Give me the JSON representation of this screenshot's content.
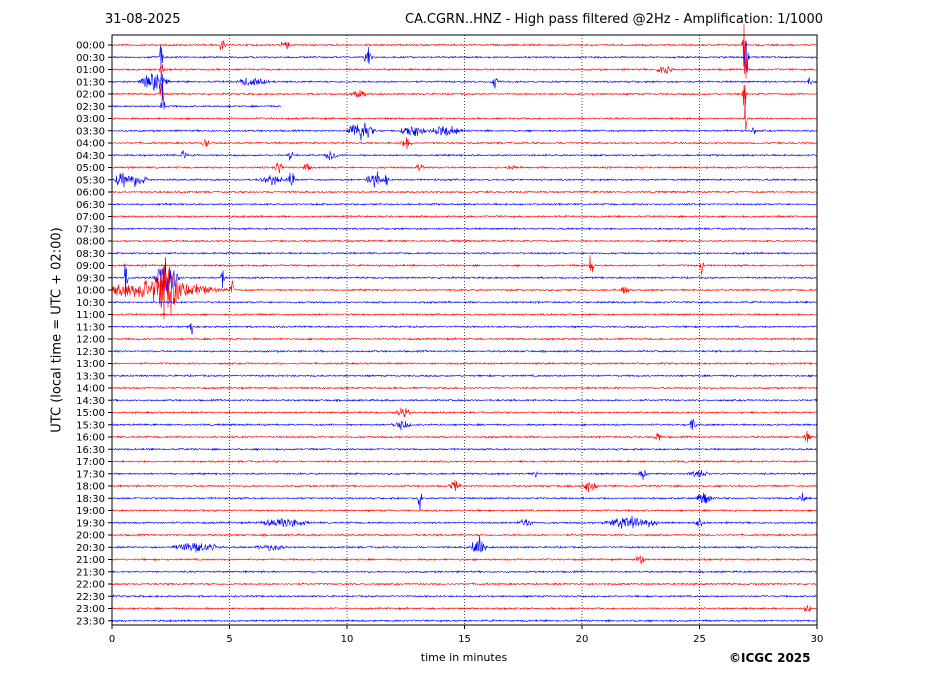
{
  "header": {
    "date": "31-08-2025",
    "title": "CA.CGRN..HNZ - High pass filtered @2Hz - Amplification: 1/1000"
  },
  "footer": {
    "credit": "©ICGC 2025"
  },
  "chart_data": {
    "type": "line",
    "xlabel": "time in minutes",
    "ylabel": "UTC (local time = UTC + 02:00)",
    "xlim": [
      0,
      30
    ],
    "x_ticks": [
      0,
      5,
      10,
      15,
      20,
      25,
      30
    ],
    "grid": "vertical dotted at x ticks",
    "row_labels": [
      "00:00",
      "00:30",
      "01:00",
      "01:30",
      "02:00",
      "02:30",
      "03:00",
      "03:30",
      "04:00",
      "04:30",
      "05:00",
      "05:30",
      "06:00",
      "06:30",
      "07:00",
      "07:30",
      "08:00",
      "08:30",
      "09:00",
      "09:30",
      "10:00",
      "10:30",
      "11:00",
      "11:30",
      "12:00",
      "12:30",
      "13:00",
      "13:30",
      "14:00",
      "14:30",
      "15:00",
      "15:30",
      "16:00",
      "16:30",
      "17:00",
      "17:30",
      "18:00",
      "18:30",
      "19:00",
      "19:30",
      "20:00",
      "20:30",
      "21:00",
      "21:30",
      "22:00",
      "22:30",
      "23:00",
      "23:30"
    ],
    "trace_colors": [
      "#ff0000",
      "#0000ff"
    ],
    "row_partial_end_minutes": {
      "02:30": 7.2
    },
    "events": [
      {
        "row": "00:00",
        "at": 4.7,
        "dur": 0.15,
        "amp": 0.9
      },
      {
        "row": "00:00",
        "at": 7.4,
        "dur": 0.3,
        "amp": 0.5
      },
      {
        "row": "00:00",
        "at": 26.9,
        "dur": 0.1,
        "amp": 3.0
      },
      {
        "row": "00:30",
        "at": 2.1,
        "dur": 0.08,
        "amp": 3.0
      },
      {
        "row": "00:30",
        "at": 10.9,
        "dur": 0.2,
        "amp": 1.0
      },
      {
        "row": "00:30",
        "at": 27.0,
        "dur": 0.15,
        "amp": 1.6
      },
      {
        "row": "01:00",
        "at": 2.1,
        "dur": 0.1,
        "amp": 1.0
      },
      {
        "row": "01:00",
        "at": 23.5,
        "dur": 0.4,
        "amp": 0.6
      },
      {
        "row": "01:00",
        "at": 27.0,
        "dur": 0.1,
        "amp": 2.2
      },
      {
        "row": "01:30",
        "at": 1.8,
        "dur": 0.7,
        "amp": 0.9
      },
      {
        "row": "01:30",
        "at": 6.0,
        "dur": 0.8,
        "amp": 0.5
      },
      {
        "row": "01:30",
        "at": 16.3,
        "dur": 0.2,
        "amp": 0.6
      },
      {
        "row": "01:30",
        "at": 29.7,
        "dur": 0.1,
        "amp": 0.7
      },
      {
        "row": "02:00",
        "at": 2.1,
        "dur": 0.08,
        "amp": 3.2
      },
      {
        "row": "02:00",
        "at": 10.5,
        "dur": 0.4,
        "amp": 0.4
      },
      {
        "row": "02:00",
        "at": 26.9,
        "dur": 0.1,
        "amp": 3.0
      },
      {
        "row": "02:30",
        "at": 2.15,
        "dur": 0.1,
        "amp": 4.0
      },
      {
        "row": "03:00",
        "at": 26.95,
        "dur": 0.08,
        "amp": 2.6
      },
      {
        "row": "03:30",
        "at": 10.6,
        "dur": 0.7,
        "amp": 1.0
      },
      {
        "row": "03:30",
        "at": 12.8,
        "dur": 0.6,
        "amp": 0.7
      },
      {
        "row": "03:30",
        "at": 14.2,
        "dur": 0.8,
        "amp": 0.6
      },
      {
        "row": "03:30",
        "at": 27.3,
        "dur": 0.1,
        "amp": 0.7
      },
      {
        "row": "04:00",
        "at": 12.5,
        "dur": 0.3,
        "amp": 0.6
      },
      {
        "row": "04:00",
        "at": 4.0,
        "dur": 0.2,
        "amp": 0.5
      },
      {
        "row": "04:30",
        "at": 3.1,
        "dur": 0.2,
        "amp": 0.6
      },
      {
        "row": "04:30",
        "at": 7.6,
        "dur": 0.1,
        "amp": 1.4
      },
      {
        "row": "04:30",
        "at": 9.3,
        "dur": 0.3,
        "amp": 0.7
      },
      {
        "row": "05:00",
        "at": 7.1,
        "dur": 0.2,
        "amp": 0.9
      },
      {
        "row": "05:00",
        "at": 8.3,
        "dur": 0.2,
        "amp": 0.5
      },
      {
        "row": "05:00",
        "at": 13.1,
        "dur": 0.2,
        "amp": 0.7
      },
      {
        "row": "05:00",
        "at": 17.0,
        "dur": 0.2,
        "amp": 0.4
      },
      {
        "row": "05:30",
        "at": 0.4,
        "dur": 0.3,
        "amp": 1.0
      },
      {
        "row": "05:30",
        "at": 1.0,
        "dur": 0.6,
        "amp": 0.7
      },
      {
        "row": "05:30",
        "at": 7.6,
        "dur": 0.2,
        "amp": 1.2
      },
      {
        "row": "05:30",
        "at": 6.8,
        "dur": 0.6,
        "amp": 0.5
      },
      {
        "row": "05:30",
        "at": 11.2,
        "dur": 0.5,
        "amp": 0.9
      },
      {
        "row": "05:30",
        "at": 11.7,
        "dur": 0.1,
        "amp": 1.5
      },
      {
        "row": "09:00",
        "at": 20.4,
        "dur": 0.1,
        "amp": 2.6
      },
      {
        "row": "09:00",
        "at": 25.1,
        "dur": 0.1,
        "amp": 1.6
      },
      {
        "row": "09:30",
        "at": 0.6,
        "dur": 0.1,
        "amp": 2.2
      },
      {
        "row": "09:30",
        "at": 2.3,
        "dur": 0.6,
        "amp": 2.2
      },
      {
        "row": "09:30",
        "at": 4.7,
        "dur": 0.1,
        "amp": 1.8
      },
      {
        "row": "10:00",
        "at": 1.9,
        "dur": 3.2,
        "amp": 1.0
      },
      {
        "row": "10:00",
        "at": 2.3,
        "dur": 0.6,
        "amp": 2.2
      },
      {
        "row": "10:00",
        "at": 5.1,
        "dur": 0.1,
        "amp": 1.6
      },
      {
        "row": "10:00",
        "at": 21.8,
        "dur": 0.3,
        "amp": 0.4
      },
      {
        "row": "11:30",
        "at": 3.4,
        "dur": 0.1,
        "amp": 0.8
      },
      {
        "row": "15:00",
        "at": 12.4,
        "dur": 0.4,
        "amp": 0.6
      },
      {
        "row": "15:30",
        "at": 12.3,
        "dur": 0.5,
        "amp": 0.5
      },
      {
        "row": "15:30",
        "at": 24.7,
        "dur": 0.2,
        "amp": 0.6
      },
      {
        "row": "16:00",
        "at": 23.2,
        "dur": 0.2,
        "amp": 0.5
      },
      {
        "row": "16:00",
        "at": 29.6,
        "dur": 0.2,
        "amp": 0.5
      },
      {
        "row": "17:30",
        "at": 18.0,
        "dur": 0.2,
        "amp": 0.4
      },
      {
        "row": "17:30",
        "at": 22.6,
        "dur": 0.2,
        "amp": 0.5
      },
      {
        "row": "17:30",
        "at": 25.0,
        "dur": 0.5,
        "amp": 0.4
      },
      {
        "row": "18:00",
        "at": 14.6,
        "dur": 0.3,
        "amp": 0.5
      },
      {
        "row": "18:00",
        "at": 20.3,
        "dur": 0.4,
        "amp": 0.6
      },
      {
        "row": "18:30",
        "at": 13.1,
        "dur": 0.1,
        "amp": 2.0
      },
      {
        "row": "18:30",
        "at": 25.2,
        "dur": 0.4,
        "amp": 0.7
      },
      {
        "row": "18:30",
        "at": 29.4,
        "dur": 0.2,
        "amp": 0.5
      },
      {
        "row": "19:30",
        "at": 7.3,
        "dur": 1.2,
        "amp": 0.5
      },
      {
        "row": "19:30",
        "at": 17.6,
        "dur": 0.4,
        "amp": 0.4
      },
      {
        "row": "19:30",
        "at": 22.1,
        "dur": 1.3,
        "amp": 0.7
      },
      {
        "row": "19:30",
        "at": 25.0,
        "dur": 0.2,
        "amp": 0.5
      },
      {
        "row": "20:30",
        "at": 3.6,
        "dur": 1.2,
        "amp": 0.5
      },
      {
        "row": "20:30",
        "at": 15.6,
        "dur": 0.4,
        "amp": 1.2
      },
      {
        "row": "20:30",
        "at": 6.8,
        "dur": 0.8,
        "amp": 0.3
      },
      {
        "row": "21:00",
        "at": 22.5,
        "dur": 0.3,
        "amp": 0.5
      },
      {
        "row": "23:00",
        "at": 29.6,
        "dur": 0.2,
        "amp": 0.6
      }
    ]
  }
}
